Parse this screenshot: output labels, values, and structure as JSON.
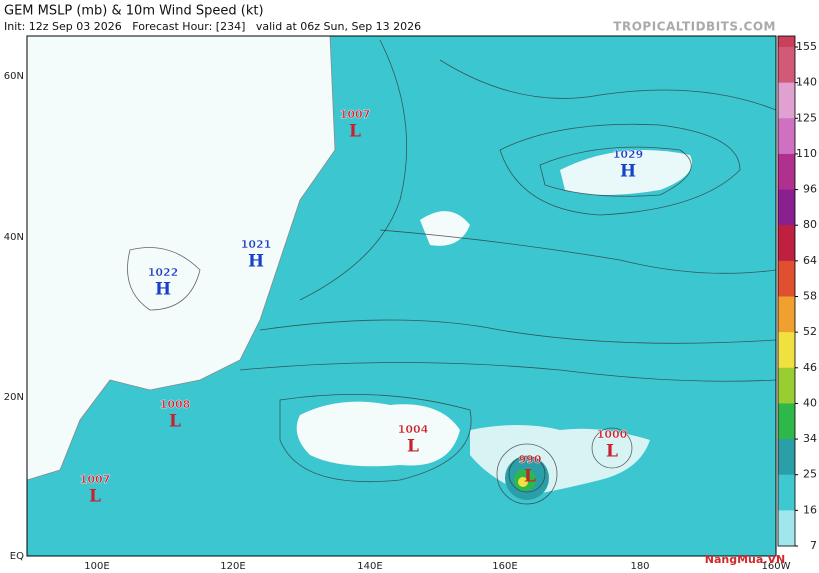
{
  "header": {
    "title": "GEM MSLP (mb) & 10m Wind Speed (kt)",
    "info": "Init: 12z Sep 03 2026   Forecast Hour: [234]   valid at 06z Sun, Sep 13 2026",
    "site": "TROPICALTIDBITS.COM"
  },
  "map": {
    "lat_labels": [
      "60N",
      "40N",
      "20N",
      "EQ"
    ],
    "lon_labels": [
      "100E",
      "120E",
      "140E",
      "160E",
      "180",
      "160W"
    ]
  },
  "colorbar": {
    "labels": [
      155,
      140,
      125,
      110,
      96,
      80,
      64,
      58,
      52,
      46,
      40,
      34,
      25,
      16,
      7
    ]
  },
  "centers": [
    {
      "kind": "L",
      "value": 1007
    },
    {
      "kind": "H",
      "value": 1029
    },
    {
      "kind": "H",
      "value": 1022
    },
    {
      "kind": "H",
      "value": 1021
    },
    {
      "kind": "L",
      "value": 1008
    },
    {
      "kind": "L",
      "value": 1004
    },
    {
      "kind": "L",
      "value": 990
    },
    {
      "kind": "L",
      "value": 1000
    },
    {
      "kind": "L",
      "value": 1007
    }
  ],
  "watermark": "NangMua.VN"
}
